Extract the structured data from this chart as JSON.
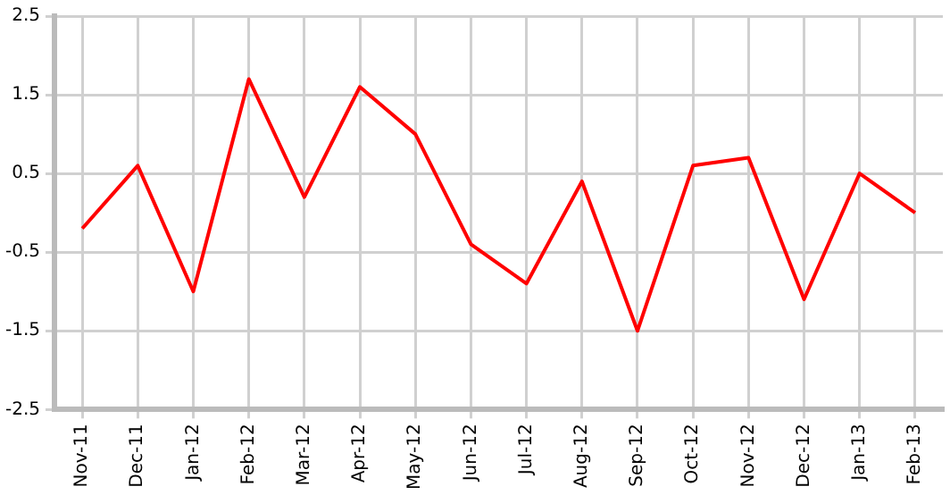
{
  "chart_data": {
    "type": "line",
    "categories": [
      "Nov-11",
      "Dec-11",
      "Jan-12",
      "Feb-12",
      "Mar-12",
      "Apr-12",
      "May-12",
      "Jun-12",
      "Jul-12",
      "Aug-12",
      "Sep-12",
      "Oct-12",
      "Nov-12",
      "Dec-12",
      "Jan-13",
      "Feb-13"
    ],
    "series": [
      {
        "color": "#ff0000",
        "values": [
          -0.2,
          0.6,
          -1.0,
          1.7,
          0.2,
          1.6,
          1.0,
          -0.4,
          -0.9,
          0.4,
          -1.5,
          0.6,
          0.7,
          -1.1,
          0.5,
          0.0
        ]
      }
    ],
    "ylim": [
      -2.5,
      2.5
    ],
    "yticks": [
      -2.5,
      -1.5,
      -0.5,
      0.5,
      1.5,
      2.5
    ],
    "grid": true,
    "legend": false,
    "marker": "none",
    "line_style": "solid"
  }
}
